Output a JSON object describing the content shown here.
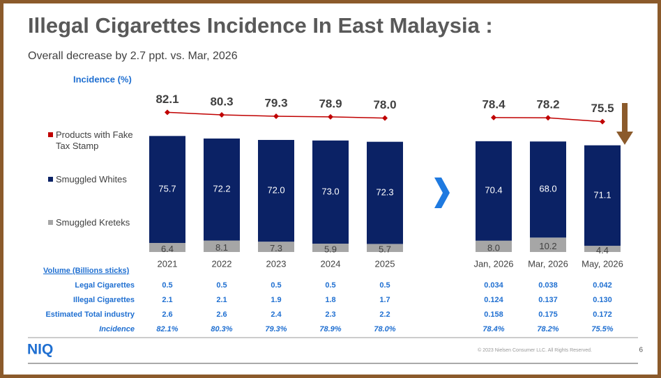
{
  "chart_data": {
    "type": "bar",
    "title": "Illegal Cigarettes Incidence In East Malaysia :",
    "subtitle": "Overall decrease by 2.7 ppt. vs. Mar, 2026",
    "value_axis_label": "Incidence (%)",
    "categories": [
      "2021",
      "2022",
      "2023",
      "2024",
      "2025",
      "Jan, 2026",
      "Mar, 2026",
      "May, 2026"
    ],
    "series": [
      {
        "name": "Products with Fake Tax Stamp",
        "type": "line",
        "color": "#c00000",
        "values": [
          82.1,
          80.3,
          79.3,
          78.9,
          78.0,
          78.4,
          78.2,
          75.5
        ],
        "value_labels": [
          "82.1",
          "80.3",
          "79.3",
          "78.9",
          "78.0",
          "78.4",
          "78.2",
          "75.5"
        ]
      },
      {
        "name": "Smuggled Whites",
        "type": "bar",
        "color": "#0b2265",
        "values": [
          75.7,
          72.2,
          72.0,
          73.0,
          72.3,
          70.4,
          68.0,
          71.1
        ],
        "value_labels": [
          "75.7",
          "72.2",
          "72.0",
          "73.0",
          "72.3",
          "70.4",
          "68.0",
          "71.1"
        ]
      },
      {
        "name": "Smuggled Kreteks",
        "type": "bar",
        "color": "#a6a6a6",
        "values": [
          6.4,
          8.1,
          7.3,
          5.9,
          5.7,
          8.0,
          10.2,
          4.4
        ],
        "value_labels": [
          "6.4",
          "8.1",
          "7.3",
          "5.9",
          "5.7",
          "8.0",
          "10.2",
          "4.4"
        ]
      }
    ]
  },
  "table": {
    "title": "Volume (Billions sticks)",
    "rows": [
      [
        "Legal Cigarettes",
        "0.5",
        "0.5",
        "0.5",
        "0.5",
        "0.5",
        "0.034",
        "0.038",
        "0.042"
      ],
      [
        "Illegal Cigarettes",
        "2.1",
        "2.1",
        "1.9",
        "1.8",
        "1.7",
        "0.124",
        "0.137",
        "0.130"
      ],
      [
        "Estimated Total industry",
        "2.6",
        "2.6",
        "2.4",
        "2.3",
        "2.2",
        "0.158",
        "0.175",
        "0.172"
      ],
      [
        "Incidence",
        "82.1%",
        "80.3%",
        "79.3%",
        "78.9%",
        "78.0%",
        "78.4%",
        "78.2%",
        "75.5%"
      ]
    ]
  },
  "footer": {
    "logo": "NIQ",
    "copyright": "© 2023 Nielsen Consumer LLC. All Rights Reserved.",
    "page": "6"
  }
}
